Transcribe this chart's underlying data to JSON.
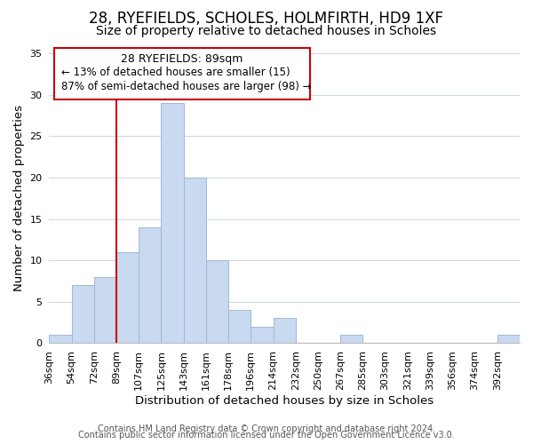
{
  "title": "28, RYEFIELDS, SCHOLES, HOLMFIRTH, HD9 1XF",
  "subtitle": "Size of property relative to detached houses in Scholes",
  "xlabel": "Distribution of detached houses by size in Scholes",
  "ylabel": "Number of detached properties",
  "bar_color": "#c8d9f0",
  "bar_edge_color": "#a0b8d8",
  "bin_labels": [
    "36sqm",
    "54sqm",
    "72sqm",
    "89sqm",
    "107sqm",
    "125sqm",
    "143sqm",
    "161sqm",
    "178sqm",
    "196sqm",
    "214sqm",
    "232sqm",
    "250sqm",
    "267sqm",
    "285sqm",
    "303sqm",
    "321sqm",
    "339sqm",
    "356sqm",
    "374sqm",
    "392sqm"
  ],
  "bar_heights": [
    1,
    7,
    8,
    11,
    14,
    29,
    20,
    10,
    4,
    2,
    3,
    0,
    0,
    1,
    0,
    0,
    0,
    0,
    0,
    0,
    1
  ],
  "ylim": [
    0,
    35
  ],
  "yticks": [
    0,
    5,
    10,
    15,
    20,
    25,
    30,
    35
  ],
  "annotation_title": "28 RYEFIELDS: 89sqm",
  "annotation_line1": "← 13% of detached houses are smaller (15)",
  "annotation_line2": "87% of semi-detached houses are larger (98) →",
  "vline_x_index": 3,
  "vline_color": "#cc0000",
  "annotation_box_color": "#ffffff",
  "annotation_box_edge_color": "#cc0000",
  "footer_line1": "Contains HM Land Registry data © Crown copyright and database right 2024.",
  "footer_line2": "Contains public sector information licensed under the Open Government Licence v3.0.",
  "background_color": "#ffffff",
  "grid_color": "#d0d8e8",
  "title_fontsize": 12,
  "subtitle_fontsize": 10,
  "axis_label_fontsize": 9.5,
  "tick_fontsize": 8,
  "footer_fontsize": 7,
  "annotation_title_fontsize": 9,
  "annotation_text_fontsize": 8.5
}
